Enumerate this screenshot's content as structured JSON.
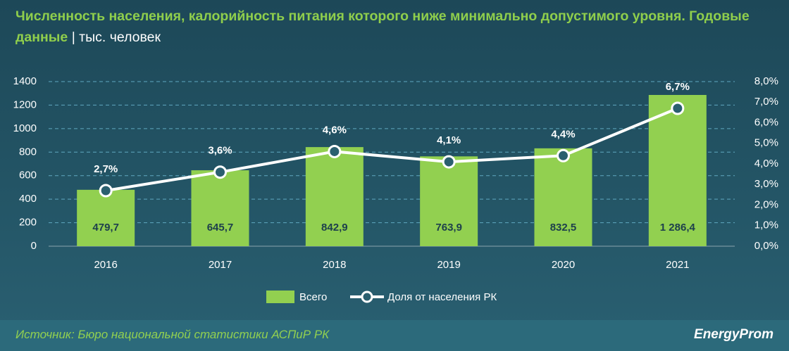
{
  "chart_data": {
    "type": "bar",
    "title": "Численность населения, калорийность питания которого ниже минимально допустимого уровня. Годовые данные",
    "unit": "| тыс. человек",
    "categories": [
      "2016",
      "2017",
      "2018",
      "2019",
      "2020",
      "2021"
    ],
    "series": [
      {
        "name": "Всего",
        "type": "bar",
        "color": "#92d050",
        "values": [
          479.7,
          645.7,
          842.9,
          763.9,
          832.5,
          1286.4
        ],
        "value_labels": [
          "479,7",
          "645,7",
          "842,9",
          "763,9",
          "832,5",
          "1 286,4"
        ]
      },
      {
        "name": "Доля от населения РК",
        "type": "line",
        "axis": "y2",
        "color": "#ffffff",
        "values": [
          2.7,
          3.6,
          4.6,
          4.1,
          4.4,
          6.7
        ],
        "value_labels": [
          "2,7%",
          "3,6%",
          "4,6%",
          "4,1%",
          "4,4%",
          "6,7%"
        ]
      }
    ],
    "ylim": [
      0,
      1400
    ],
    "yticks": [
      0,
      200,
      400,
      600,
      800,
      1000,
      1200,
      1400
    ],
    "y2lim": [
      0,
      8
    ],
    "y2ticks": [
      {
        "value": 0,
        "label": "0,0%"
      },
      {
        "value": 1,
        "label": "1,0%"
      },
      {
        "value": 2,
        "label": "2,0%"
      },
      {
        "value": 3,
        "label": "3,0%"
      },
      {
        "value": 4,
        "label": "4,0%"
      },
      {
        "value": 5,
        "label": "5,0%"
      },
      {
        "value": 6,
        "label": "6,0%"
      },
      {
        "value": 7,
        "label": "7,0%"
      },
      {
        "value": 8,
        "label": "8,0%"
      }
    ],
    "grid": true,
    "legend": "bottom",
    "source": "Источник: Бюро национальной статистики АСПиР РК",
    "logo": "EnergyProm"
  }
}
